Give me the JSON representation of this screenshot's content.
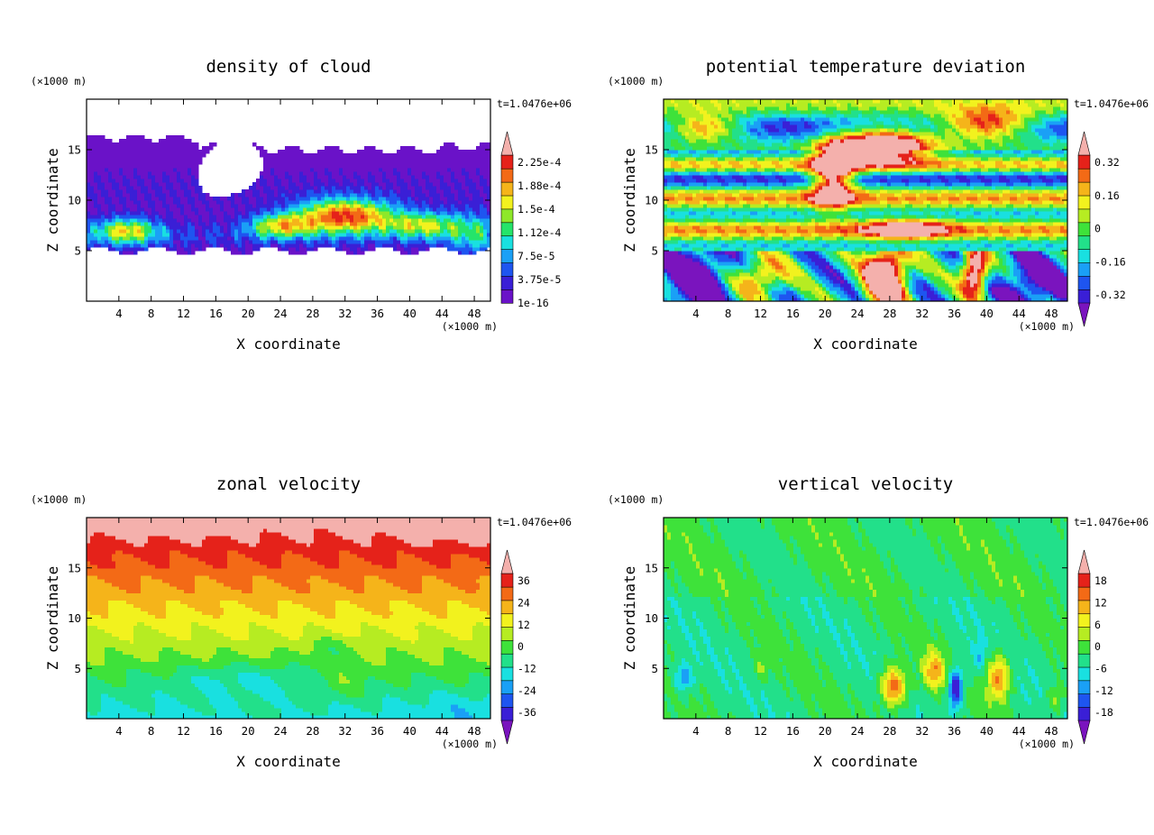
{
  "chart_data": [
    {
      "type": "heatmap",
      "title": "density of cloud",
      "xlabel": "X coordinate",
      "ylabel": "Z coordinate",
      "x_unit": "(×1000 m)",
      "y_unit": "(×1000 m)",
      "time_label": "t=1.0476e+06",
      "xlim": [
        0,
        50
      ],
      "ylim": [
        0,
        20
      ],
      "xticks": [
        4,
        8,
        12,
        16,
        20,
        24,
        28,
        32,
        36,
        40,
        44,
        48
      ],
      "yticks": [
        5,
        10,
        15
      ],
      "colorbar_labels": [
        "2.25e-4",
        "1.88e-4",
        "1.5e-4",
        "1.12e-4",
        "7.5e-5",
        "3.75e-5",
        "1e-16"
      ],
      "colorbar_triangle_top": true,
      "colorbar_triangle_bottom": false,
      "colors": [
        "#6a12c8",
        "#3a1fd6",
        "#1e55f0",
        "#1aa0f6",
        "#19e0e0",
        "#25e46a",
        "#8ee82a",
        "#f2f21e",
        "#f5b41a",
        "#f36a16",
        "#e5221a",
        "#f4b0ac"
      ],
      "field": "cloud"
    },
    {
      "type": "heatmap",
      "title": "potential temperature deviation",
      "xlabel": "X coordinate",
      "ylabel": "Z coordinate",
      "x_unit": "(×1000 m)",
      "y_unit": "(×1000 m)",
      "time_label": "t=1.0476e+06",
      "xlim": [
        0,
        50
      ],
      "ylim": [
        0,
        20
      ],
      "xticks": [
        4,
        8,
        12,
        16,
        20,
        24,
        28,
        32,
        36,
        40,
        44,
        48
      ],
      "yticks": [
        5,
        10,
        15
      ],
      "colorbar_labels": [
        "0.32",
        "0.16",
        "0",
        "-0.16",
        "-0.32"
      ],
      "colorbar_triangle_top": true,
      "colorbar_triangle_bottom": true,
      "colors": [
        "#7a14be",
        "#3a1fd6",
        "#1e55f0",
        "#1aa0f6",
        "#19e0e0",
        "#22e08a",
        "#3ee23a",
        "#b6ec22",
        "#f2f21e",
        "#f5b41a",
        "#f36a16",
        "#e5221a",
        "#f4b0ac"
      ],
      "field": "theta"
    },
    {
      "type": "heatmap",
      "title": "zonal velocity",
      "xlabel": "X coordinate",
      "ylabel": "Z coordinate",
      "x_unit": "(×1000 m)",
      "y_unit": "(×1000 m)",
      "time_label": "t=1.0476e+06",
      "xlim": [
        0,
        50
      ],
      "ylim": [
        0,
        20
      ],
      "xticks": [
        4,
        8,
        12,
        16,
        20,
        24,
        28,
        32,
        36,
        40,
        44,
        48
      ],
      "yticks": [
        5,
        10,
        15
      ],
      "colorbar_labels": [
        "36",
        "24",
        "12",
        "0",
        "-12",
        "-24",
        "-36"
      ],
      "colorbar_triangle_top": true,
      "colorbar_triangle_bottom": true,
      "colors": [
        "#7a14be",
        "#3a1fd6",
        "#1e55f0",
        "#1aa0f6",
        "#19e0e0",
        "#22e08a",
        "#3ee23a",
        "#b6ec22",
        "#f2f21e",
        "#f5b41a",
        "#f36a16",
        "#e5221a",
        "#f4b0ac"
      ],
      "field": "u"
    },
    {
      "type": "heatmap",
      "title": "vertical velocity",
      "xlabel": "X coordinate",
      "ylabel": "Z coordinate",
      "x_unit": "(×1000 m)",
      "y_unit": "(×1000 m)",
      "time_label": "t=1.0476e+06",
      "xlim": [
        0,
        50
      ],
      "ylim": [
        0,
        20
      ],
      "xticks": [
        4,
        8,
        12,
        16,
        20,
        24,
        28,
        32,
        36,
        40,
        44,
        48
      ],
      "yticks": [
        5,
        10,
        15
      ],
      "colorbar_labels": [
        "18",
        "12",
        "6",
        "0",
        "-6",
        "-12",
        "-18"
      ],
      "colorbar_triangle_top": true,
      "colorbar_triangle_bottom": true,
      "colors": [
        "#7a14be",
        "#3a1fd6",
        "#1e55f0",
        "#1aa0f6",
        "#19e0e0",
        "#22e08a",
        "#3ee23a",
        "#b6ec22",
        "#f2f21e",
        "#f5b41a",
        "#f36a16",
        "#e5221a",
        "#f4b0ac"
      ],
      "field": "w"
    }
  ]
}
